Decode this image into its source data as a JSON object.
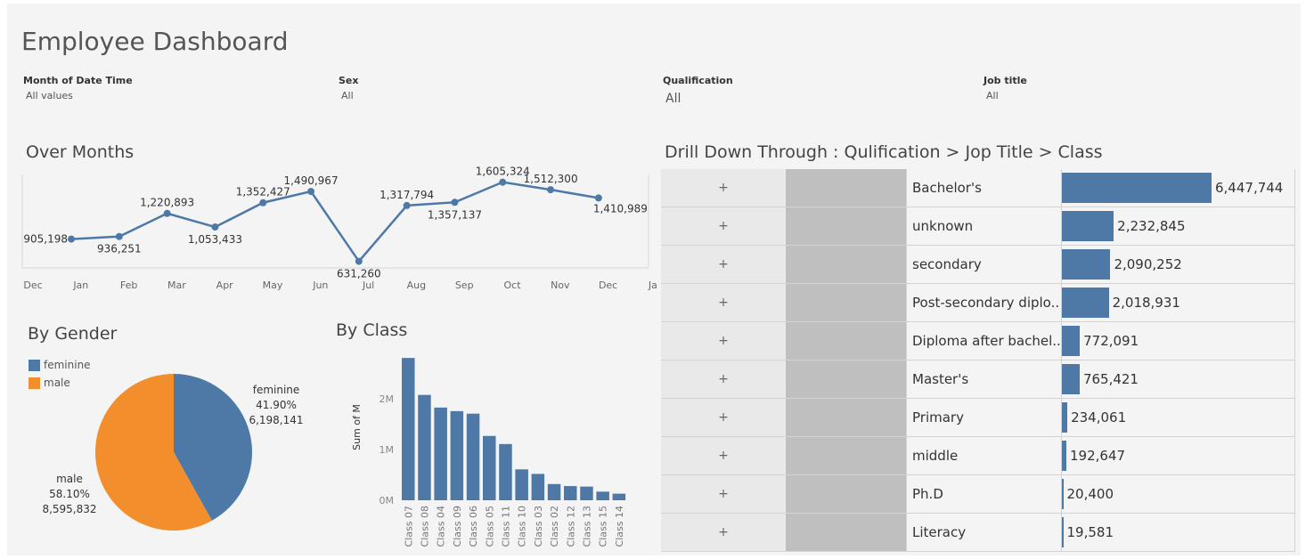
{
  "dashboard": {
    "title": "Employee Dashboard"
  },
  "filters": [
    {
      "label": "Month of Date Time",
      "value": "All values"
    },
    {
      "label": "Sex",
      "value": "All"
    },
    {
      "label": "Qualification",
      "value": "All"
    },
    {
      "label": "Job title",
      "value": "All"
    }
  ],
  "sections": {
    "months": "Over Months",
    "gender": "By Gender",
    "class": "By Class",
    "drill": "Drill Down Through : Qulification > Jop Title > Class"
  },
  "colors": {
    "blue": "#4e79a7",
    "orange": "#f28e2b",
    "bg": "#f4f4f4"
  },
  "chart_data": [
    {
      "type": "line",
      "title": "Over Months",
      "x_ticks": [
        "Dec",
        "Jan",
        "Feb",
        "Mar",
        "Apr",
        "May",
        "Jun",
        "Jul",
        "Aug",
        "Sep",
        "Oct",
        "Nov",
        "Dec",
        "Jan"
      ],
      "categories": [
        "Jan",
        "Feb",
        "Mar",
        "Apr",
        "May",
        "Jun",
        "Jul",
        "Aug",
        "Sep",
        "Oct",
        "Nov",
        "Dec"
      ],
      "values": [
        905198,
        936251,
        1220893,
        1053433,
        1352427,
        1490967,
        631260,
        1317794,
        1357137,
        1605324,
        1512300,
        1410989
      ],
      "labels": [
        "905,198",
        "936,251",
        "1,220,893",
        "1,053,433",
        "1,352,427",
        "1,490,967",
        "631,260",
        "1,317,794",
        "1,357,137",
        "1,605,324",
        "1,512,300",
        "1,410,989"
      ],
      "ylim": [
        550000,
        1700000
      ],
      "color": "#4e79a7"
    },
    {
      "type": "pie",
      "title": "By Gender",
      "legend": [
        "feminine",
        "male"
      ],
      "slices": [
        {
          "name": "feminine",
          "value": 6198141,
          "pct": "41.90%",
          "value_label": "6,198,141",
          "color": "#4e79a7"
        },
        {
          "name": "male",
          "value": 8595832,
          "pct": "58.10%",
          "value_label": "8,595,832",
          "color": "#f28e2b"
        }
      ]
    },
    {
      "type": "bar",
      "title": "By Class",
      "ylabel": "Sum of M",
      "y_ticks": [
        "0M",
        "1M",
        "2M"
      ],
      "ylim": [
        0,
        2900000
      ],
      "categories": [
        "Class 07",
        "Class 08",
        "Class 04",
        "Class 09",
        "Class 06",
        "Class 05",
        "Class 11",
        "Class 10",
        "Class 03",
        "Class 02",
        "Class 12",
        "Class 13",
        "Class 15",
        "Class 14"
      ],
      "values": [
        2810000,
        2080000,
        1830000,
        1760000,
        1710000,
        1270000,
        1110000,
        610000,
        520000,
        320000,
        280000,
        270000,
        170000,
        130000
      ],
      "color": "#4e79a7"
    },
    {
      "type": "table",
      "title": "Drill Down Through : Qulification > Jop Title > Class",
      "expand_symbol": "+",
      "rows": [
        {
          "name": "Bachelor's",
          "value": 6447744,
          "label": "6,447,744"
        },
        {
          "name": "unknown",
          "value": 2232845,
          "label": "2,232,845"
        },
        {
          "name": "secondary",
          "value": 2090252,
          "label": "2,090,252"
        },
        {
          "name": "Post-secondary diplo..",
          "value": 2018931,
          "label": "2,018,931"
        },
        {
          "name": "Diploma after bachel..",
          "value": 772091,
          "label": "772,091"
        },
        {
          "name": "Master's",
          "value": 765421,
          "label": "765,421"
        },
        {
          "name": "Primary",
          "value": 234061,
          "label": "234,061"
        },
        {
          "name": "middle",
          "value": 192647,
          "label": "192,647"
        },
        {
          "name": "Ph.D",
          "value": 20400,
          "label": "20,400"
        },
        {
          "name": "Literacy",
          "value": 19581,
          "label": "19,581"
        }
      ]
    }
  ]
}
